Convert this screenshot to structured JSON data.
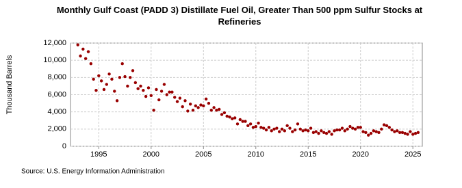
{
  "chart_data": {
    "type": "scatter",
    "title": "Monthly Gulf Coast (PADD 3) Distillate Fuel Oil, Greater Than 500 ppm Sulfur Stocks at Refineries",
    "y_label": "Thousand Barrels",
    "source": "Source: U.S. Energy Information Administration",
    "xlim": [
      1992.3,
      2025.9
    ],
    "xticks": [
      1995,
      2000,
      2005,
      2010,
      2015,
      2020,
      2025
    ],
    "ylim": [
      0,
      12000
    ],
    "yticks": [
      0,
      {
        "value": 2000,
        "label": "2,000"
      },
      {
        "value": 4000,
        "label": "4,000"
      },
      {
        "value": 6000,
        "label": "6,000"
      },
      {
        "value": 8000,
        "label": "8,000"
      },
      {
        "value": 10000,
        "label": "10,000"
      },
      {
        "value": 12000,
        "label": "12,000"
      }
    ],
    "grid": true,
    "color": "#990000",
    "x": [
      1993,
      1993.25,
      1993.5,
      1993.75,
      1994,
      1994.25,
      1994.5,
      1994.75,
      1995,
      1995.25,
      1995.5,
      1995.75,
      1996,
      1996.25,
      1996.5,
      1996.75,
      1997,
      1997.25,
      1997.5,
      1997.75,
      1998,
      1998.25,
      1998.5,
      1998.75,
      1999,
      1999.25,
      1999.5,
      1999.75,
      2000,
      2000.25,
      2000.5,
      2000.75,
      2001,
      2001.25,
      2001.5,
      2001.75,
      2002,
      2002.25,
      2002.5,
      2002.75,
      2003,
      2003.25,
      2003.5,
      2003.75,
      2004,
      2004.25,
      2004.5,
      2004.75,
      2005,
      2005.25,
      2005.5,
      2005.75,
      2006,
      2006.25,
      2006.5,
      2006.75,
      2007,
      2007.25,
      2007.5,
      2007.75,
      2008,
      2008.25,
      2008.5,
      2008.75,
      2009,
      2009.25,
      2009.5,
      2009.75,
      2010,
      2010.25,
      2010.5,
      2010.75,
      2011,
      2011.25,
      2011.5,
      2011.75,
      2012,
      2012.25,
      2012.5,
      2012.75,
      2013,
      2013.25,
      2013.5,
      2013.75,
      2014,
      2014.25,
      2014.5,
      2014.75,
      2015,
      2015.25,
      2015.5,
      2015.75,
      2016,
      2016.25,
      2016.5,
      2016.75,
      2017,
      2017.25,
      2017.5,
      2017.75,
      2018,
      2018.25,
      2018.5,
      2018.75,
      2019,
      2019.25,
      2019.5,
      2019.75,
      2020,
      2020.25,
      2020.5,
      2020.75,
      2021,
      2021.25,
      2021.5,
      2021.75,
      2022,
      2022.25,
      2022.5,
      2022.75,
      2023,
      2023.25,
      2023.5,
      2023.75,
      2024,
      2024.25,
      2024.5,
      2024.75,
      2025,
      2025.25,
      2025.5
    ],
    "values": [
      11800,
      10500,
      11300,
      10200,
      11000,
      9600,
      7800,
      6500,
      8200,
      7600,
      6600,
      7200,
      8400,
      7800,
      6400,
      5300,
      8000,
      9600,
      8100,
      7000,
      8000,
      8800,
      7400,
      6700,
      7000,
      6500,
      5800,
      6800,
      5900,
      4200,
      6600,
      5400,
      6400,
      7200,
      6000,
      6300,
      6300,
      5700,
      5200,
      5600,
      4600,
      5300,
      4100,
      4900,
      4200,
      4700,
      4500,
      4800,
      4700,
      5500,
      5000,
      4200,
      4500,
      4200,
      4300,
      3700,
      3900,
      3500,
      3400,
      3200,
      3300,
      2600,
      3100,
      2900,
      2900,
      2400,
      2600,
      2200,
      2300,
      2700,
      2200,
      2100,
      1900,
      2200,
      1800,
      2000,
      2100,
      1700,
      2000,
      1800,
      2400,
      2100,
      1700,
      1900,
      2600,
      2000,
      1800,
      1900,
      1800,
      2100,
      1600,
      1700,
      1500,
      1800,
      1600,
      1500,
      1700,
      1400,
      1800,
      1900,
      1900,
      2100,
      1800,
      2000,
      2300,
      2100,
      2000,
      2200,
      2200,
      1700,
      1600,
      1300,
      1500,
      1800,
      1700,
      1600,
      2000,
      2500,
      2400,
      2200,
      1900,
      1700,
      1800,
      1600,
      1600,
      1500,
      1400,
      1700,
      1400,
      1500,
      1600
    ]
  }
}
